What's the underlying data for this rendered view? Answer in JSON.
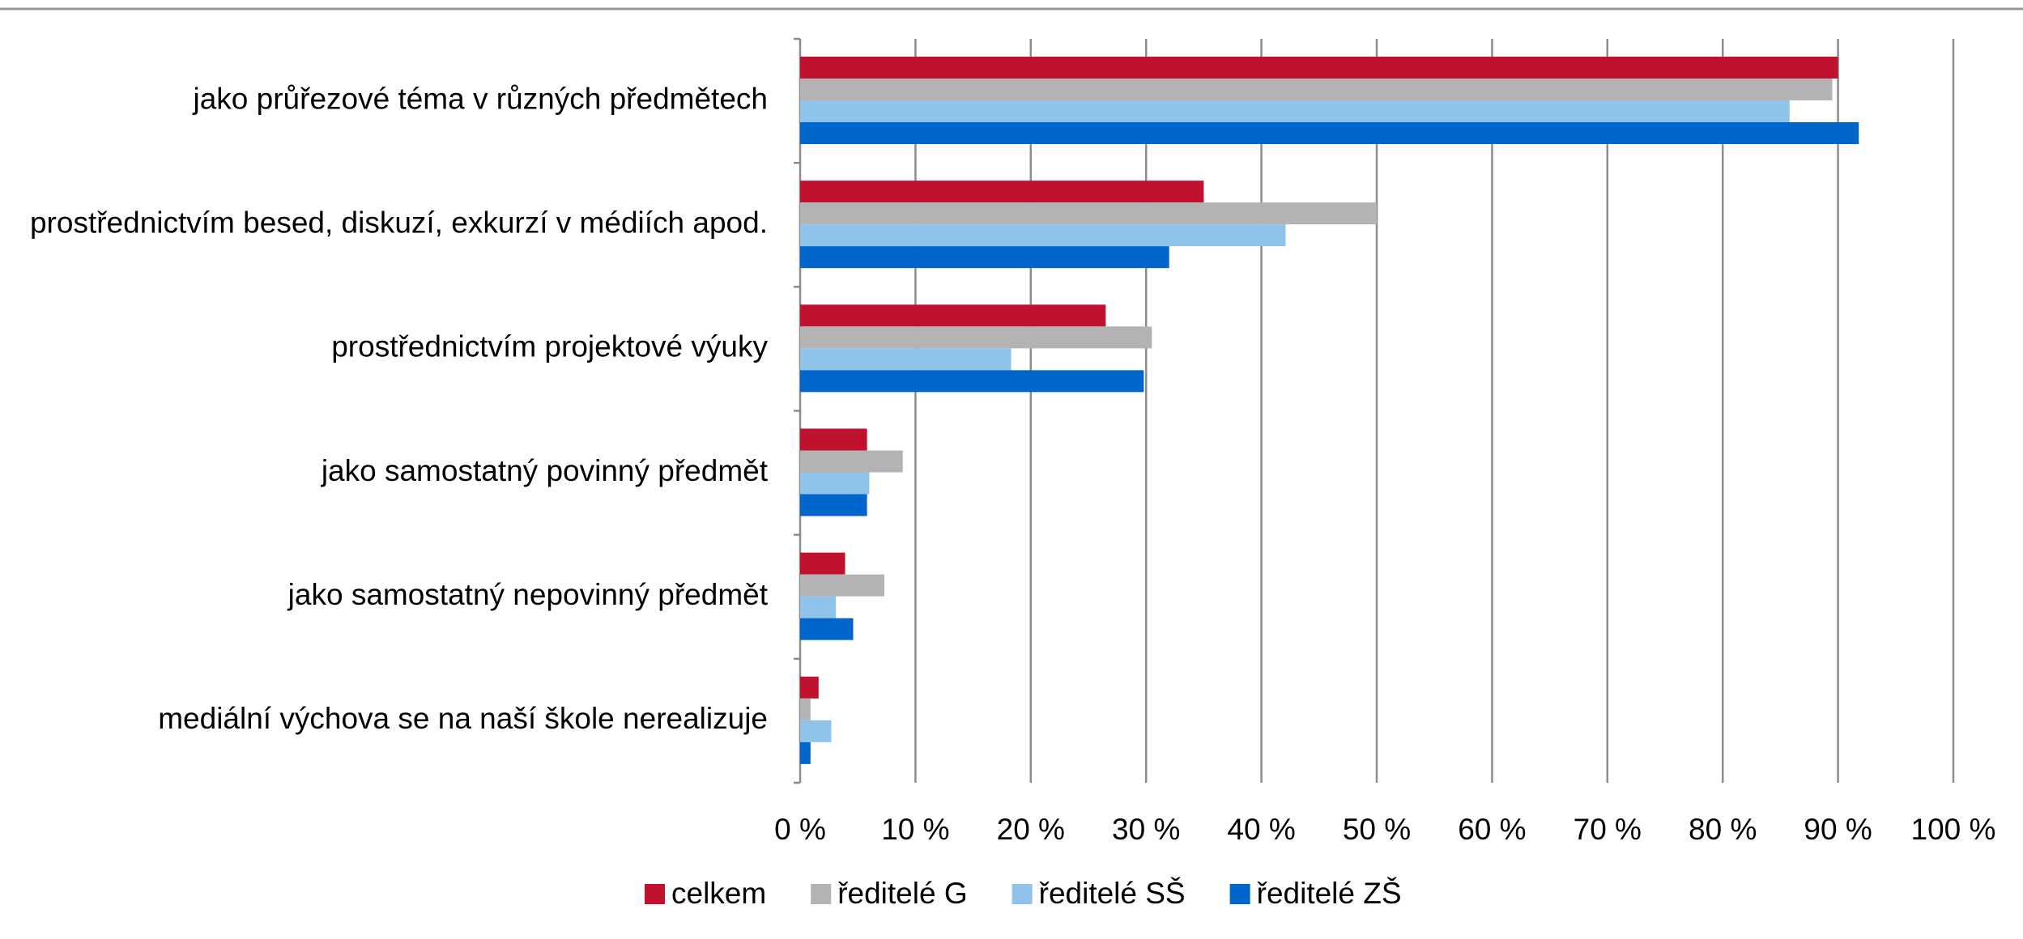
{
  "chart_data": {
    "type": "bar",
    "orientation": "horizontal",
    "categories": [
      "jako průřezové téma v různých předmětech",
      "prostřednictvím besed, diskuzí, exkurzí v médiích apod.",
      "prostřednictvím projektové výuky",
      "jako samostatný povinný předmět",
      "jako samostatný nepovinný předmět",
      "mediální výchova se na naší škole nerealizuje"
    ],
    "series": [
      {
        "name": "celkem",
        "color": "#c0122f",
        "values": [
          90,
          35,
          26.5,
          5.8,
          3.9,
          1.6
        ]
      },
      {
        "name": "ředitelé G",
        "color": "#b3b3b3",
        "values": [
          89.5,
          50,
          30.5,
          8.9,
          7.3,
          0.9
        ]
      },
      {
        "name": "ředitelé SŠ",
        "color": "#8fc3ea",
        "values": [
          85.8,
          42.1,
          18.3,
          6,
          3.1,
          2.7
        ]
      },
      {
        "name": "ředitelé ZŠ",
        "color": "#0066cc",
        "values": [
          91.8,
          32,
          29.8,
          5.8,
          4.6,
          0.9
        ]
      }
    ],
    "xlim": [
      0,
      100
    ],
    "xticks": [
      {
        "value": 0,
        "label": "0 %"
      },
      {
        "value": 10,
        "label": "10 %"
      },
      {
        "value": 20,
        "label": "20 %"
      },
      {
        "value": 30,
        "label": "30 %"
      },
      {
        "value": 40,
        "label": "40 %"
      },
      {
        "value": 50,
        "label": "50 %"
      },
      {
        "value": 60,
        "label": "60 %"
      },
      {
        "value": 70,
        "label": "70 %"
      },
      {
        "value": 80,
        "label": "80 %"
      },
      {
        "value": 90,
        "label": "90 %"
      },
      {
        "value": 100,
        "label": "100 %"
      }
    ],
    "grid": true,
    "legend": "bottom"
  }
}
